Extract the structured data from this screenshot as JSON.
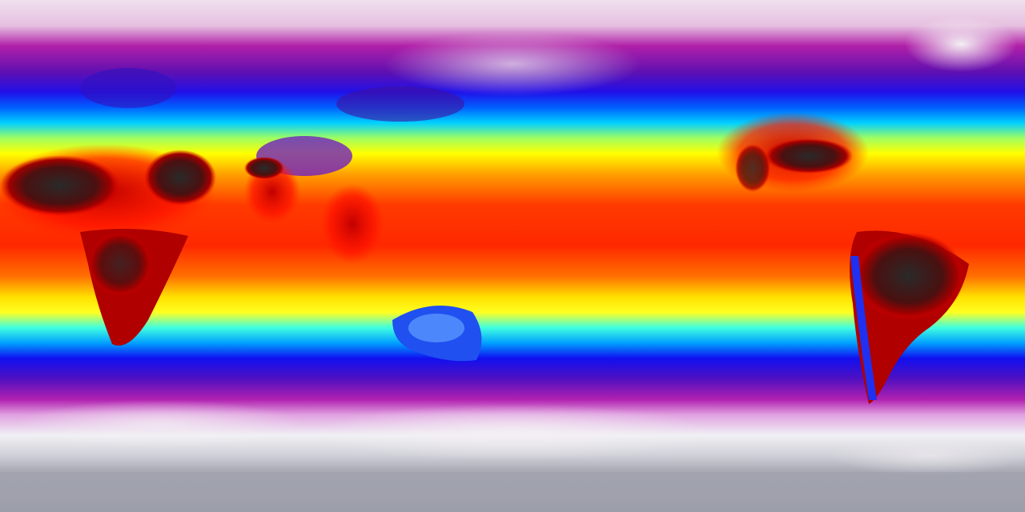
{
  "map": {
    "projection": "equirectangular",
    "variable_style": "global surface temperature colormap",
    "colormap": [
      "#f2e6f0",
      "#c020b0",
      "#8010a0",
      "#2010e0",
      "#0040ff",
      "#00c0ff",
      "#60ffb0",
      "#ffff00",
      "#ffa000",
      "#ff3000",
      "#e00000",
      "#800000",
      "#303030"
    ],
    "land_hot_color": "#2a2a2a",
    "polar_color": "#a0a4b0"
  }
}
